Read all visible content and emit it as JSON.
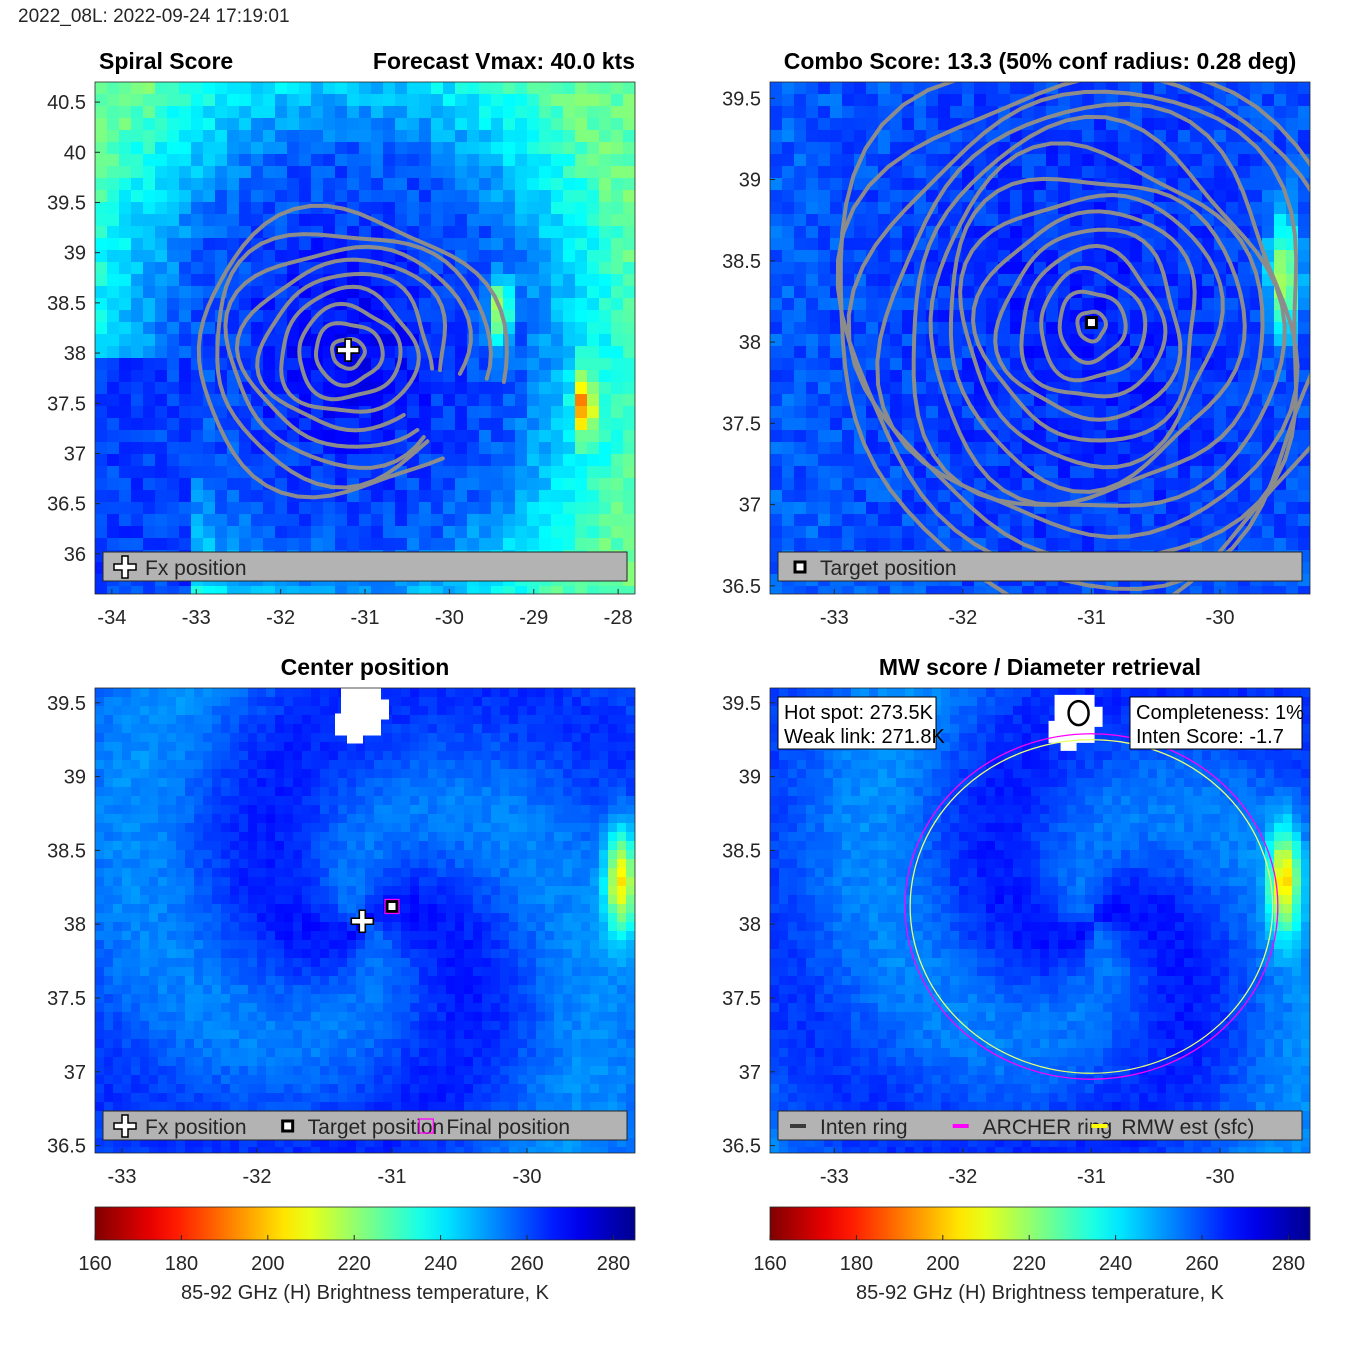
{
  "header": {
    "text": "2022_08L: 2022-09-24 17:19:01"
  },
  "colorbar": {
    "label": "85-92 GHz (H) Brightness temperature, K",
    "ticks": [
      160,
      180,
      200,
      220,
      240,
      260,
      280
    ],
    "range": [
      160,
      285
    ],
    "colors": [
      "#800000",
      "#ff0000",
      "#ff8000",
      "#ffff00",
      "#80ff80",
      "#00ffff",
      "#0080ff",
      "#0000ff",
      "#000080"
    ]
  },
  "chart_data": [
    {
      "type": "heatmap",
      "title_left": "Spiral Score",
      "title_right": "Forecast Vmax: 40.0 kts",
      "xlim": [
        -34.2,
        -27.8
      ],
      "ylim": [
        35.6,
        40.7
      ],
      "xticks": [
        -34,
        -33,
        -32,
        -31,
        -30,
        -29,
        -28
      ],
      "yticks": [
        36,
        36.5,
        37,
        37.5,
        38,
        38.5,
        39,
        39.5,
        40,
        40.5
      ],
      "center": [
        -31.2,
        38.0
      ],
      "contours": "spiral",
      "warm_spots": [
        {
          "x": -29.4,
          "y": 38.4,
          "t": 215
        },
        {
          "x": -28.4,
          "y": 37.5,
          "t": 210
        }
      ],
      "markers": [
        {
          "type": "plus",
          "x": -31.2,
          "y": 38.03
        }
      ],
      "legend": [
        {
          "symbol": "plus",
          "label": "Fx position"
        }
      ]
    },
    {
      "type": "heatmap",
      "title": "Combo Score: 13.3  (50% conf radius: 0.28 deg)",
      "xlim": [
        -33.5,
        -29.3
      ],
      "ylim": [
        36.45,
        39.6
      ],
      "xticks": [
        -33,
        -32,
        -31,
        -30
      ],
      "yticks": [
        36.5,
        37,
        37.5,
        38,
        38.5,
        39,
        39.5
      ],
      "center": [
        -31.0,
        38.1
      ],
      "contours": "rings",
      "warm_spots": [
        {
          "x": -29.5,
          "y": 38.4,
          "t": 212
        }
      ],
      "markers": [
        {
          "type": "square",
          "x": -31.0,
          "y": 38.12
        }
      ],
      "legend": [
        {
          "symbol": "square",
          "label": "Target position"
        }
      ]
    },
    {
      "type": "heatmap",
      "title": "Center position",
      "xlim": [
        -33.2,
        -29.2
      ],
      "ylim": [
        36.45,
        39.6
      ],
      "xticks": [
        -33,
        -32,
        -31,
        -30
      ],
      "yticks": [
        36.5,
        37,
        37.5,
        38,
        38.5,
        39,
        39.5
      ],
      "center": [
        -31.2,
        38.0
      ],
      "warm_spots": [
        {
          "x": -29.3,
          "y": 38.3,
          "t": 210
        }
      ],
      "missing": [
        {
          "x": -31.2,
          "y": 39.4
        }
      ],
      "markers": [
        {
          "type": "plus",
          "x": -31.22,
          "y": 38.02
        },
        {
          "type": "square",
          "x": -31.0,
          "y": 38.12
        },
        {
          "type": "mag-square",
          "x": -31.0,
          "y": 38.12
        }
      ],
      "legend": [
        {
          "symbol": "plus",
          "label": "Fx position"
        },
        {
          "symbol": "square",
          "label": "Target position"
        },
        {
          "symbol": "mag-square",
          "label": "Final position"
        }
      ]
    },
    {
      "type": "heatmap",
      "title": "MW score / Diameter retrieval",
      "xlim": [
        -33.5,
        -29.3
      ],
      "ylim": [
        36.45,
        39.6
      ],
      "xticks": [
        -33,
        -32,
        -31,
        -30
      ],
      "yticks": [
        36.5,
        37,
        37.5,
        38,
        38.5,
        39,
        39.5
      ],
      "center": [
        -31.0,
        38.0
      ],
      "warm_spots": [
        {
          "x": -29.5,
          "y": 38.3,
          "t": 210
        }
      ],
      "missing": [
        {
          "x": -31.1,
          "y": 39.35
        }
      ],
      "inten_ring": {
        "x": -31.1,
        "y": 39.43
      },
      "archer_ring": {
        "x": -31.0,
        "y": 38.12,
        "rx": 1.45,
        "ry": 1.17
      },
      "rmw_ring": {
        "x": -31.0,
        "y": 38.12,
        "rx": 1.41,
        "ry": 1.13
      },
      "textbox_left": [
        "Hot spot: 273.5K",
        "Weak link: 271.8K"
      ],
      "textbox_right": [
        "Completeness: 1%",
        "Inten Score: -1.7"
      ],
      "legend": [
        {
          "symbol": "line-dark",
          "label": "Inten ring"
        },
        {
          "symbol": "line-magenta",
          "label": "ARCHER ring"
        },
        {
          "symbol": "line-yellow",
          "label": "RMW est (sfc)"
        }
      ]
    }
  ]
}
